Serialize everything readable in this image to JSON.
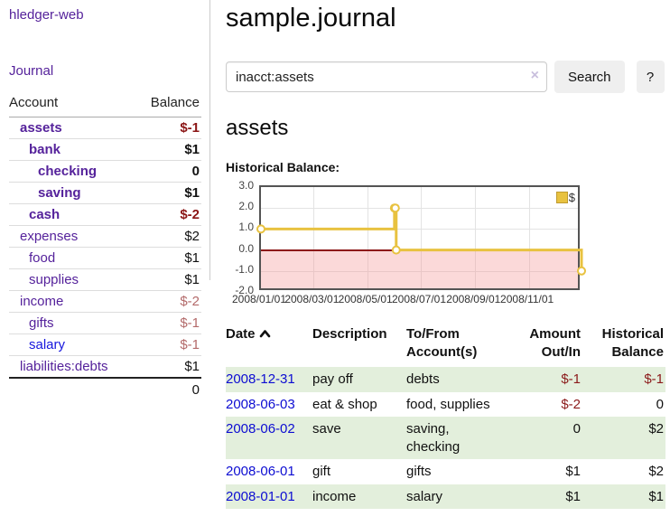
{
  "sidebar": {
    "title": "hledger-web",
    "journal_link": "Journal",
    "accounts": {
      "headers": {
        "account": "Account",
        "balance": "Balance"
      },
      "rows": [
        {
          "label": "assets",
          "indent": 1,
          "bold": true,
          "link_color": "purple",
          "balance": "$-1",
          "balance_color": "negative"
        },
        {
          "label": "bank",
          "indent": 2,
          "bold": true,
          "link_color": "purple",
          "balance": "$1",
          "balance_color": "normal"
        },
        {
          "label": "checking",
          "indent": 3,
          "bold": true,
          "link_color": "purple",
          "balance": "0",
          "balance_color": "normal"
        },
        {
          "label": "saving",
          "indent": 3,
          "bold": true,
          "link_color": "purple",
          "balance": "$1",
          "balance_color": "normal"
        },
        {
          "label": "cash",
          "indent": 2,
          "bold": true,
          "link_color": "purple",
          "balance": "$-2",
          "balance_color": "negative"
        },
        {
          "label": "expenses",
          "indent": 1,
          "bold": false,
          "link_color": "purple",
          "balance": "$2",
          "balance_color": "normal"
        },
        {
          "label": "food",
          "indent": 2,
          "bold": false,
          "link_color": "purple",
          "balance": "$1",
          "balance_color": "normal"
        },
        {
          "label": "supplies",
          "indent": 2,
          "bold": false,
          "link_color": "purple",
          "balance": "$1",
          "balance_color": "normal"
        },
        {
          "label": "income",
          "indent": 1,
          "bold": false,
          "link_color": "purple",
          "balance": "$-2",
          "balance_color": "negative-muted"
        },
        {
          "label": "gifts",
          "indent": 2,
          "bold": false,
          "link_color": "purple",
          "balance": "$-1",
          "balance_color": "negative-muted"
        },
        {
          "label": "salary",
          "indent": 2,
          "bold": false,
          "link_color": "blue",
          "balance": "$-1",
          "balance_color": "negative-muted"
        },
        {
          "label": "liabilities:debts",
          "indent": 1,
          "bold": false,
          "link_color": "purple",
          "balance": "$1",
          "balance_color": "normal"
        }
      ],
      "total": "0"
    }
  },
  "main": {
    "title": "sample.journal",
    "search": {
      "value": "inacct:assets",
      "clear_icon": "×",
      "button": "Search",
      "help_button": "?"
    },
    "account_heading": "assets",
    "chart_title": "Historical Balance:"
  },
  "chart_data": {
    "type": "line",
    "step": true,
    "title": "Historical Balance:",
    "x_range": [
      "2008-01-01",
      "2008-12-31"
    ],
    "ylim": [
      -2,
      3
    ],
    "y_ticks": [
      "3.0",
      "2.0",
      "1.0",
      "0.0",
      "-1.0",
      "-2.0"
    ],
    "x_ticks": [
      "2008/01/01",
      "2008/03/01",
      "2008/05/01",
      "2008/07/01",
      "2008/09/01",
      "2008/11/01"
    ],
    "grid": true,
    "legend_position": "top-right",
    "series": [
      {
        "name": "$",
        "color": "#e8c240",
        "points": [
          {
            "date": "2008-01-01",
            "value": 1
          },
          {
            "date": "2008-06-01",
            "value": 2
          },
          {
            "date": "2008-06-02",
            "value": 2
          },
          {
            "date": "2008-06-03",
            "value": 0
          },
          {
            "date": "2008-12-31",
            "value": -1
          }
        ]
      }
    ],
    "negative_region": true
  },
  "register": {
    "headers": {
      "date": "Date",
      "description": "Description",
      "accounts": "To/From Account(s)",
      "amount": "Amount Out/In",
      "balance": "Historical Balance"
    },
    "rows": [
      {
        "date": "2008-12-31",
        "description": "pay off",
        "accounts": "debts",
        "amount": "$-1",
        "amount_negative": true,
        "balance": "$-1",
        "balance_negative": true
      },
      {
        "date": "2008-06-03",
        "description": "eat & shop",
        "accounts": "food, supplies",
        "amount": "$-2",
        "amount_negative": true,
        "balance": "0",
        "balance_negative": false
      },
      {
        "date": "2008-06-02",
        "description": "save",
        "accounts": "saving, checking",
        "amount": "0",
        "amount_negative": false,
        "balance": "$2",
        "balance_negative": false
      },
      {
        "date": "2008-06-01",
        "description": "gift",
        "accounts": "gifts",
        "amount": "$1",
        "amount_negative": false,
        "balance": "$2",
        "balance_negative": false
      },
      {
        "date": "2008-01-01",
        "description": "income",
        "accounts": "salary",
        "amount": "$1",
        "amount_negative": false,
        "balance": "$1",
        "balance_negative": false
      }
    ]
  }
}
